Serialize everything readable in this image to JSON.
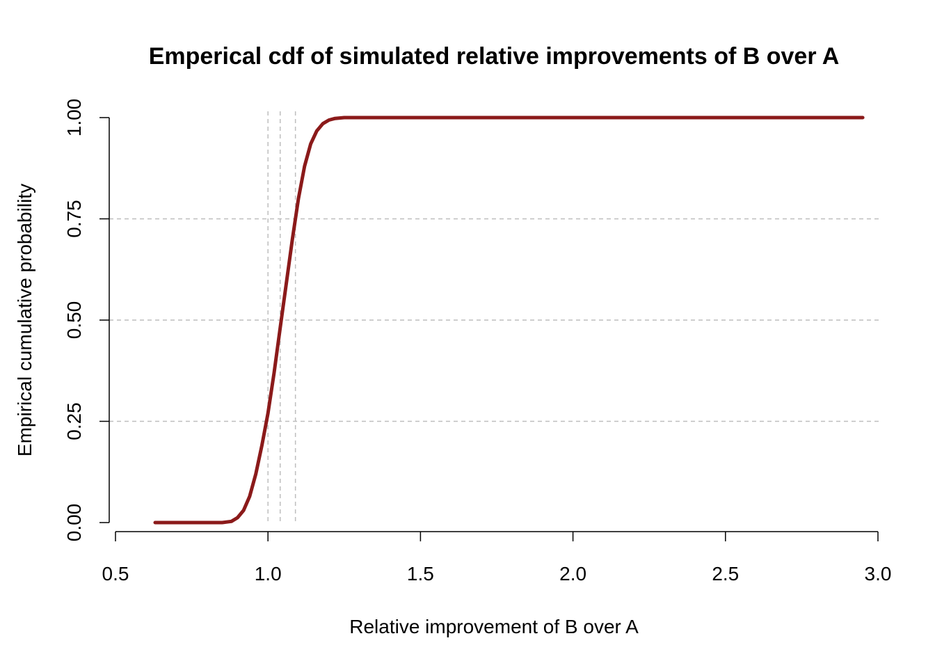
{
  "chart_data": {
    "type": "line",
    "title": "Emperical cdf of simulated relative improvements of B over A",
    "xlabel": "Relative improvement of B over A",
    "ylabel": "Empirical cumulative probability",
    "xlim": [
      0.5,
      3.0
    ],
    "ylim": [
      0.0,
      1.0
    ],
    "x_ticks": [
      0.5,
      1.0,
      1.5,
      2.0,
      2.5,
      3.0
    ],
    "x_tick_labels": [
      "0.5",
      "1.0",
      "1.5",
      "2.0",
      "2.5",
      "3.0"
    ],
    "y_ticks": [
      0.0,
      0.25,
      0.5,
      0.75,
      1.0
    ],
    "y_tick_labels": [
      "0.00",
      "0.25",
      "0.50",
      "0.75",
      "1.00"
    ],
    "grid": {
      "horizontal_dashed_at": [
        0.25,
        0.5,
        0.75
      ],
      "vertical_dashed_at": [
        1.0,
        1.04,
        1.09
      ]
    },
    "line_color": "#8B1A1A",
    "grid_color": "#BEBEBE",
    "series": [
      {
        "x": [
          0.63,
          0.7,
          0.8,
          0.85,
          0.88,
          0.9,
          0.92,
          0.94,
          0.96,
          0.98,
          1.0,
          1.02,
          1.04,
          1.06,
          1.08,
          1.1,
          1.12,
          1.14,
          1.16,
          1.18,
          1.2,
          1.22,
          1.25,
          1.3,
          1.5,
          2.0,
          2.5,
          2.95
        ],
        "y": [
          0.0,
          0.0,
          0.0,
          0.0,
          0.003,
          0.012,
          0.03,
          0.065,
          0.12,
          0.19,
          0.27,
          0.37,
          0.48,
          0.59,
          0.7,
          0.8,
          0.88,
          0.935,
          0.967,
          0.985,
          0.994,
          0.998,
          1.0,
          1.0,
          1.0,
          1.0,
          1.0,
          1.0
        ]
      }
    ]
  }
}
